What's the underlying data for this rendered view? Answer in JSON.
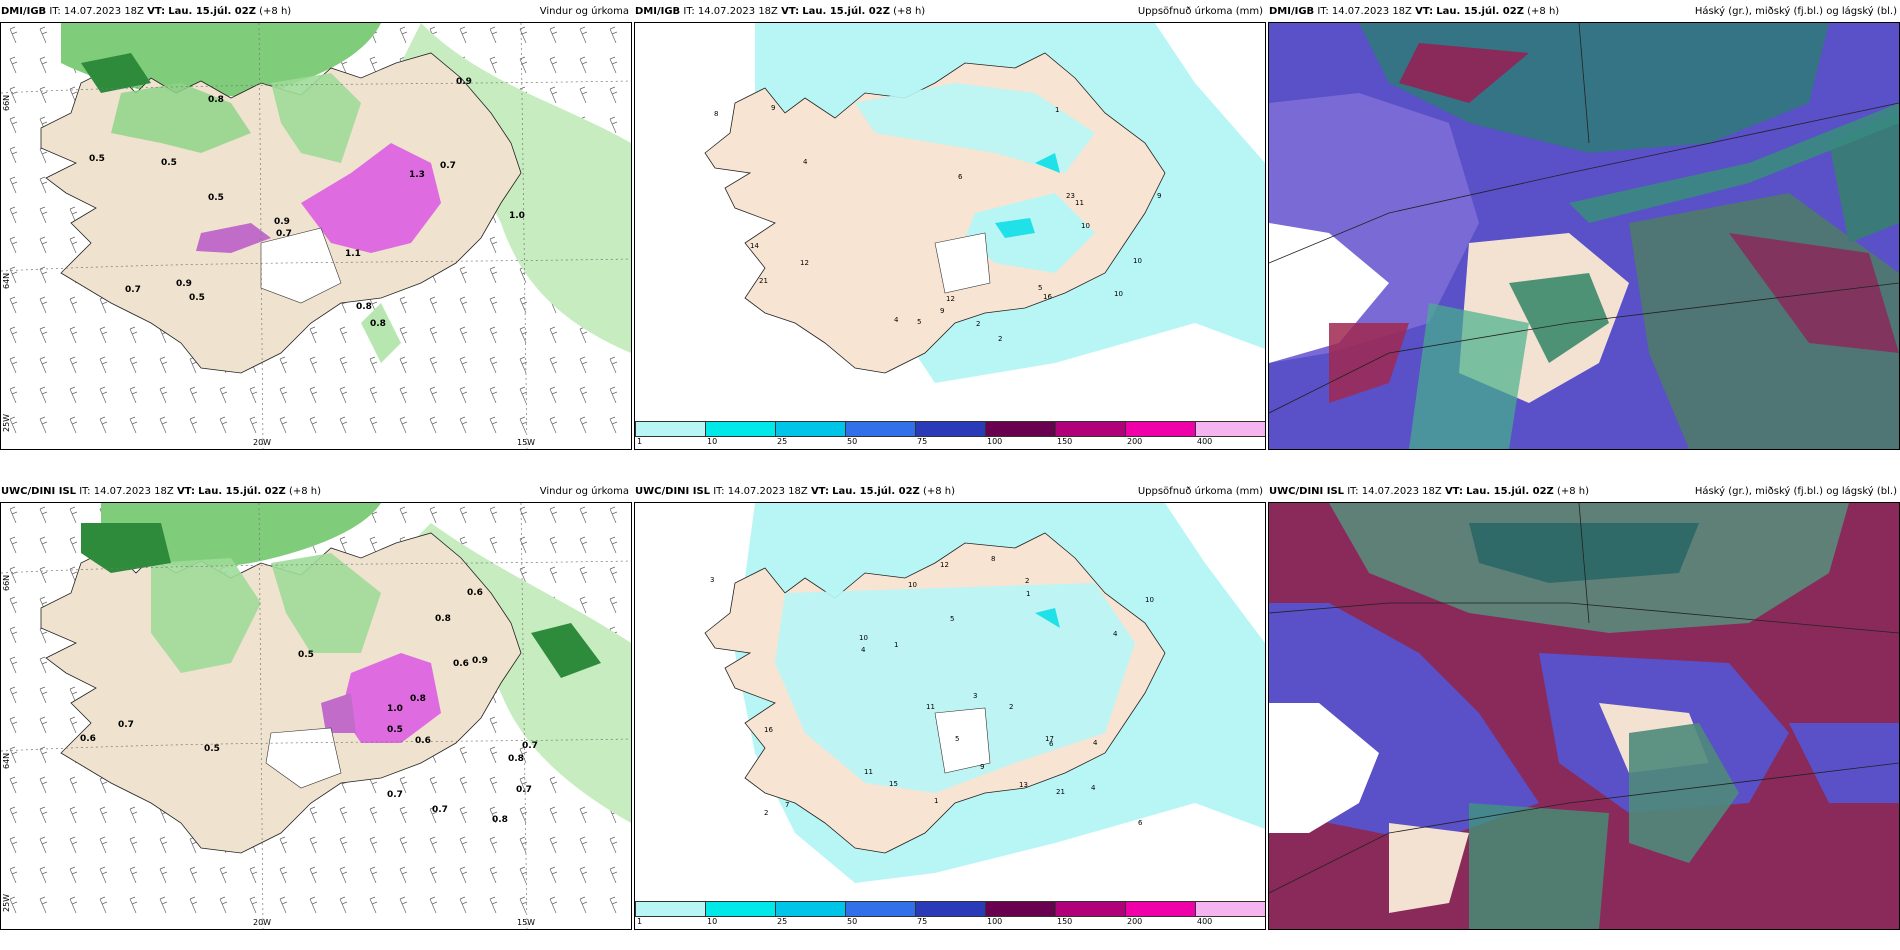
{
  "panels": [
    {
      "model": "DMI/IGB",
      "it": "IT: 14.07.2023 18Z",
      "vt_label": "VT:",
      "vt": "Lau. 15.júl. 02Z",
      "lead": "(+8 h)",
      "title": "Vindur og úrkoma"
    },
    {
      "model": "DMI/IGB",
      "it": "IT: 14.07.2023 18Z",
      "vt_label": "VT:",
      "vt": "Lau. 15.júl. 02Z",
      "lead": "(+8 h)",
      "title": "Uppsöfnuð úrkoma (mm)"
    },
    {
      "model": "DMI/IGB",
      "it": "IT: 14.07.2023 18Z",
      "vt_label": "VT:",
      "vt": "Lau. 15.júl. 02Z",
      "lead": "(+8 h)",
      "title": "Háský (gr.), miðský (fj.bl.) og lágský (bl.)"
    },
    {
      "model": "UWC/DINI ISL",
      "it": "IT: 14.07.2023 18Z",
      "vt_label": "VT:",
      "vt": "Lau. 15.júl. 02Z",
      "lead": "(+8 h)",
      "title": "Vindur og úrkoma"
    },
    {
      "model": "UWC/DINI ISL",
      "it": "IT: 14.07.2023 18Z",
      "vt_label": "VT:",
      "vt": "Lau. 15.júl. 02Z",
      "lead": "(+8 h)",
      "title": "Uppsöfnuð úrkoma (mm)"
    },
    {
      "model": "UWC/DINI ISL",
      "it": "IT: 14.07.2023 18Z",
      "vt_label": "VT:",
      "vt": "Lau. 15.júl. 02Z",
      "lead": "(+8 h)",
      "title": "Háský (gr.), miðský (fj.bl.) og lágský (bl.)"
    }
  ],
  "axes": {
    "lat66": "66N",
    "lat64": "64N",
    "lon20": "20W",
    "lon15": "15W",
    "lon25": "25W"
  },
  "colorbar": {
    "ticks": [
      "1",
      "10",
      "25",
      "50",
      "75",
      "100",
      "150",
      "200",
      "400"
    ],
    "colors": [
      "#b8f6f6",
      "#00e8e8",
      "#00c4e8",
      "#3070e8",
      "#2a3ab8",
      "#6a0050",
      "#b0007a",
      "#f000a8",
      "#f4b4f0"
    ]
  },
  "wind_labels_top": [
    "0.8",
    "0.8",
    "0.9",
    "0.5",
    "0.7",
    "0.8",
    "1.0",
    "0.5",
    "0.7",
    "0.5",
    "0.7",
    "0.5",
    "0.9",
    "1.1",
    "1.3",
    "0.9"
  ],
  "wind_labels_bottom": [
    "0.5",
    "0.7",
    "0.6",
    "0.8",
    "0.7",
    "0.8",
    "0.9",
    "0.5",
    "0.7",
    "0.7",
    "0.8",
    "1.0",
    "0.6",
    "0.6",
    "0.5",
    "0.8",
    "0.6",
    "0.7"
  ],
  "precip_labels_top": [
    "4",
    "12",
    "6",
    "8",
    "9",
    "21",
    "9",
    "14",
    "23",
    "4",
    "12",
    "10",
    "5",
    "2",
    "1",
    "2",
    "5",
    "16",
    "10",
    "11",
    "9",
    "10"
  ],
  "precip_labels_bottom": [
    "2",
    "4",
    "3",
    "5",
    "10",
    "8",
    "4",
    "2",
    "21",
    "11",
    "6",
    "4",
    "15",
    "12",
    "13",
    "10",
    "17",
    "16",
    "11",
    "10",
    "3",
    "7",
    "1",
    "2",
    "6",
    "1",
    "1",
    "5",
    "4",
    "9"
  ]
}
